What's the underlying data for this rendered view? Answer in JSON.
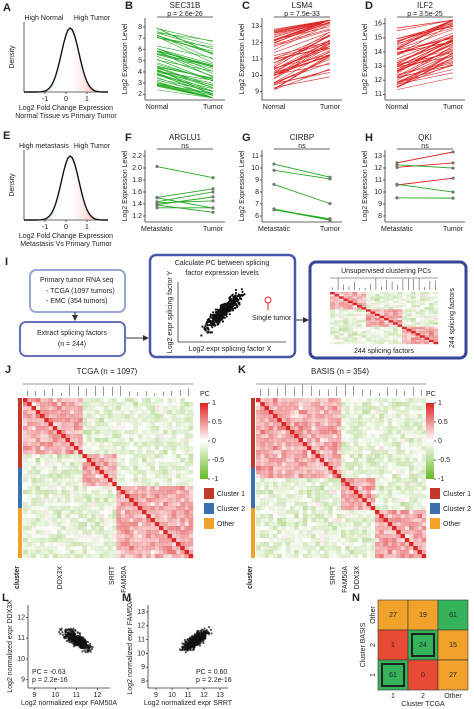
{
  "panels": {
    "A": {
      "label": "A",
      "left": "High Normal",
      "right": "High Tumor",
      "ylabel": "Density",
      "xlabel": [
        "Log2 Fold Change Expression",
        "Normal Tissue vs Primary Tumor"
      ],
      "xlim": [
        -2,
        2
      ],
      "xticks": [
        -1,
        0,
        1
      ]
    },
    "B": {
      "label": "B",
      "title": "SEC31B",
      "p": "p = 2.6e-26",
      "ylabel": "Log2 Expression Level",
      "ylim": [
        1.5,
        8.8
      ],
      "yticks": [
        2,
        3,
        4,
        5,
        6,
        7,
        8
      ],
      "categories": [
        "Normal",
        "Tumor"
      ]
    },
    "C": {
      "label": "C",
      "title": "LSM4",
      "p": "p = 7.5e-33",
      "ylabel": "Log2 Expression Level",
      "ylim": [
        8.5,
        13.5
      ],
      "yticks": [
        9,
        10,
        11,
        12,
        13
      ],
      "categories": [
        "Normal",
        "Tumor"
      ]
    },
    "D": {
      "label": "D",
      "title": "ILF2",
      "p": "p = 3.5e-25",
      "ylabel": "Log2 Expression Level",
      "ylim": [
        10.6,
        16.4
      ],
      "yticks": [
        11,
        12,
        13,
        14,
        15,
        16
      ],
      "categories": [
        "Normal",
        "Tumor"
      ]
    },
    "E": {
      "label": "E",
      "left": "High metastasis",
      "right": "High Tumor",
      "ylabel": "Density",
      "xlabel": [
        "Log2 Fold Change Expression",
        "Metastasis Vs Primary Tumor"
      ],
      "xlim": [
        -2,
        2
      ],
      "xticks": [
        -1,
        0,
        1
      ]
    },
    "F": {
      "label": "F",
      "title": "ARGLU1",
      "p": "ns",
      "ylabel": "Log2 Expression Level",
      "ylim": [
        1.1,
        2.3
      ],
      "yticks": [
        1.2,
        1.4,
        1.6,
        1.8,
        {
          "value": 2,
          "label": "2.0"
        },
        2.2
      ],
      "categories": [
        "Metastatic",
        "Tumor"
      ]
    },
    "G": {
      "label": "G",
      "title": "CIRBP",
      "p": "ns",
      "ylabel": "Log2 Expression Level",
      "ylim": [
        5.5,
        11.5
      ],
      "yticks": [
        6,
        7,
        8,
        9,
        10,
        11
      ],
      "categories": [
        "Metastatic",
        "Tumor"
      ]
    },
    "H": {
      "label": "H",
      "title": "QKI",
      "p": "ns",
      "ylabel": "Log2 Expression Level",
      "ylim": [
        7.5,
        13.5
      ],
      "yticks": [
        8,
        9,
        10,
        11,
        12,
        13
      ],
      "categories": [
        "Metastatic",
        "Tumor"
      ]
    },
    "I": {
      "label": "I",
      "source": [
        "Primary tumor RNA seq",
        "- TCGA (1097 tumors)",
        "- EMC (354 tumors)"
      ],
      "extract": [
        "Extract splicing factors",
        "(n = 244)"
      ],
      "calc": [
        "Calculate PC between splicing",
        "factor expression levels"
      ],
      "calc_y": "Log2 expr splicing factor Y",
      "calc_x": "Log2 expr splicing factor X",
      "point": "Single tumor",
      "cluster_title": "Unsupervised clustering PCs",
      "side": "244 splicing factors",
      "bottom": "244 splicing factors"
    },
    "J": {
      "label": "J",
      "title": "TCGA (n = 1097)",
      "legend": "PC",
      "cticks": [
        1,
        0.5,
        0,
        -0.5,
        -1
      ],
      "clusters": [
        "Cluster 1",
        "Cluster 2",
        "Other"
      ],
      "cluster_label": "cluster",
      "genes": [
        "DDX3X",
        "SRRT",
        "FAM50A"
      ]
    },
    "K": {
      "label": "K",
      "title": "BASIS (n = 354)",
      "legend": "PC",
      "cticks": [
        1,
        0.5,
        0,
        -0.5,
        -1
      ],
      "clusters": [
        "Cluster 1",
        "Cluster 2",
        "Other"
      ],
      "cluster_label": "cluster",
      "genes": [
        "SRRT",
        "FAM50A",
        "DDX3X"
      ]
    },
    "L": {
      "label": "L",
      "xlabel": "Log2 normalized expr FAM50A",
      "ylabel": "Log2 normalized expr DDX3X",
      "xlim": [
        8.7,
        12.6
      ],
      "xticks": [
        9,
        10,
        11,
        12
      ],
      "ylim": [
        8.6,
        12.6
      ],
      "yticks": [
        9,
        10,
        11,
        12
      ],
      "pc": "PC = -0.63",
      "p": "p = 2.2e-16"
    },
    "M": {
      "label": "M",
      "xlabel": "Log2 normalized expr SRRT",
      "ylabel": "Log2 normalized expr FAM50A",
      "xlim": [
        8.5,
        13.5
      ],
      "xticks": [
        9,
        10,
        11,
        12,
        13
      ],
      "ylim": [
        7.5,
        13.5
      ],
      "yticks": [
        8,
        9,
        10,
        11,
        12,
        13
      ],
      "pc": "PC = 0.60",
      "p": "p = 2.2e-16"
    },
    "N": {
      "label": "N",
      "ylabel": "Cluster BASIS",
      "xlabel": "Cluster TCGA",
      "cols": [
        "1",
        "2",
        "Other"
      ],
      "rows": [
        "Other",
        "2",
        "1"
      ],
      "values": [
        [
          27,
          19,
          61
        ],
        [
          1,
          24,
          15
        ],
        [
          61,
          0,
          27
        ]
      ]
    }
  }
}
